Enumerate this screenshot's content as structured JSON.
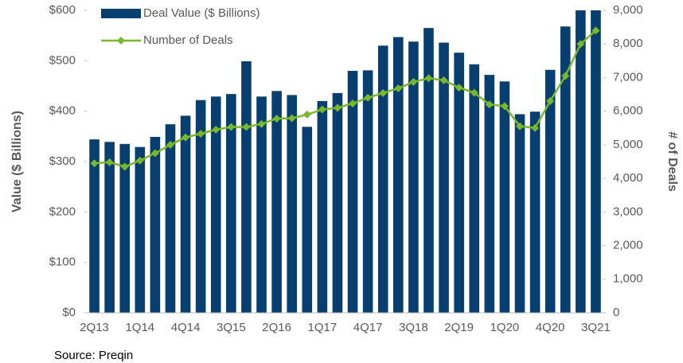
{
  "chart_data": {
    "type": "bar_line",
    "categories": [
      "2Q13",
      null,
      null,
      "1Q14",
      null,
      null,
      "4Q14",
      null,
      null,
      "3Q15",
      null,
      null,
      "2Q16",
      null,
      null,
      "1Q17",
      null,
      null,
      "4Q17",
      null,
      null,
      "3Q18",
      null,
      null,
      "2Q19",
      null,
      null,
      "1Q20",
      null,
      null,
      "4Q20",
      null,
      null,
      "3Q21"
    ],
    "series": [
      {
        "name": "Deal Value ($ Billions)",
        "type": "bar",
        "color": "#063f70",
        "values": [
          344,
          339,
          335,
          329,
          349,
          374,
          391,
          422,
          429,
          434,
          499,
          429,
          440,
          432,
          369,
          420,
          436,
          480,
          481,
          530,
          547,
          538,
          565,
          536,
          516,
          493,
          472,
          459,
          394,
          399,
          482,
          568,
          600,
          600
        ]
      },
      {
        "name": "Number of Deals",
        "type": "line",
        "axis": "y2",
        "color": "#78b82a",
        "values": [
          4450,
          4480,
          4350,
          4530,
          4750,
          5000,
          5220,
          5330,
          5450,
          5530,
          5530,
          5620,
          5780,
          5790,
          5900,
          6050,
          6100,
          6230,
          6400,
          6540,
          6680,
          6870,
          6980,
          6920,
          6700,
          6550,
          6200,
          6150,
          5550,
          5500,
          6300,
          7050,
          8000,
          8400
        ]
      }
    ],
    "y_label": "Value ($ Billions)",
    "y2_label": "# of Deals",
    "ylim": [
      0,
      600
    ],
    "yticks": [
      {
        "value": 0,
        "label": "$0"
      },
      {
        "value": 100,
        "label": "$100"
      },
      {
        "value": 200,
        "label": "$200"
      },
      {
        "value": 300,
        "label": "$300"
      },
      {
        "value": 400,
        "label": "$400"
      },
      {
        "value": 500,
        "label": "$500"
      },
      {
        "value": 600,
        "label": "$600"
      }
    ],
    "y2lim": [
      0,
      9000
    ],
    "y2ticks": [
      0,
      {
        "value": 1000,
        "label": "1,000"
      },
      {
        "value": 2000,
        "label": "2,000"
      },
      {
        "value": 3000,
        "label": "3,000"
      },
      {
        "value": 4000,
        "label": "4,000"
      },
      {
        "value": 5000,
        "label": "5,000"
      },
      {
        "value": 6000,
        "label": "6,000"
      },
      {
        "value": 7000,
        "label": "7,000"
      },
      {
        "value": 8000,
        "label": "8,000"
      },
      {
        "value": 9000,
        "label": "9,000"
      }
    ],
    "grid": false,
    "legend": "upper left",
    "source": "Source: Preqin"
  }
}
